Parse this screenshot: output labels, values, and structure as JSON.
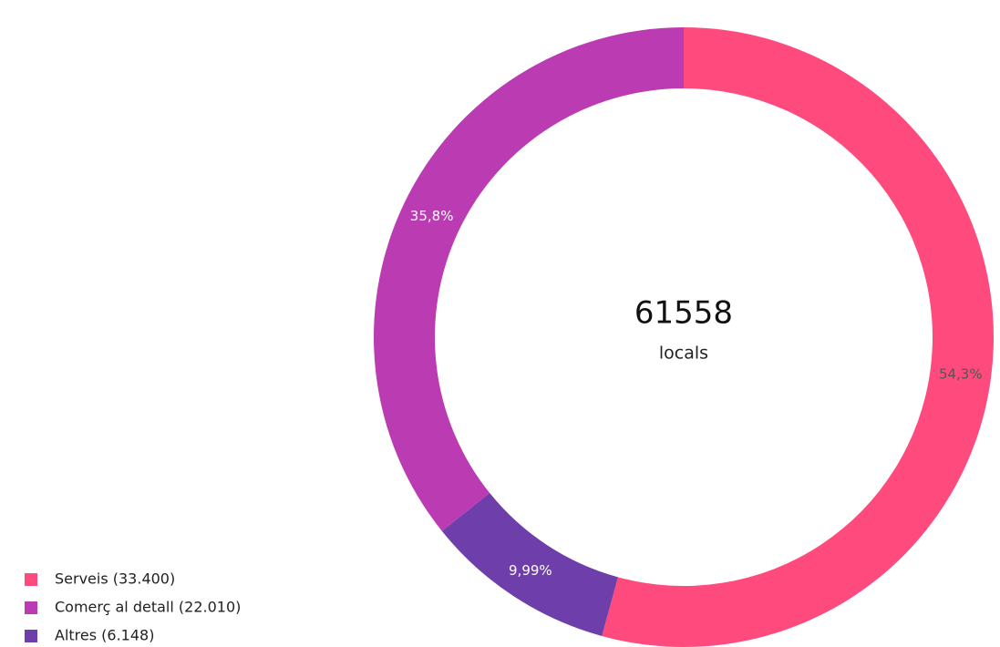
{
  "chart_data": {
    "type": "donut",
    "categories": [
      "Serveis (33.400)",
      "Comerç al detall (22.010)",
      "Altres (6.148)"
    ],
    "values": [
      54.3,
      35.8,
      9.99
    ],
    "value_labels": [
      "54,3%",
      "35,8%",
      "9,99%"
    ],
    "colors": [
      "#ff4a7d",
      "#bb3bb3",
      "#6e3fab"
    ],
    "center_value": 61558,
    "center_label": "locals",
    "legend": "bottom-left"
  }
}
